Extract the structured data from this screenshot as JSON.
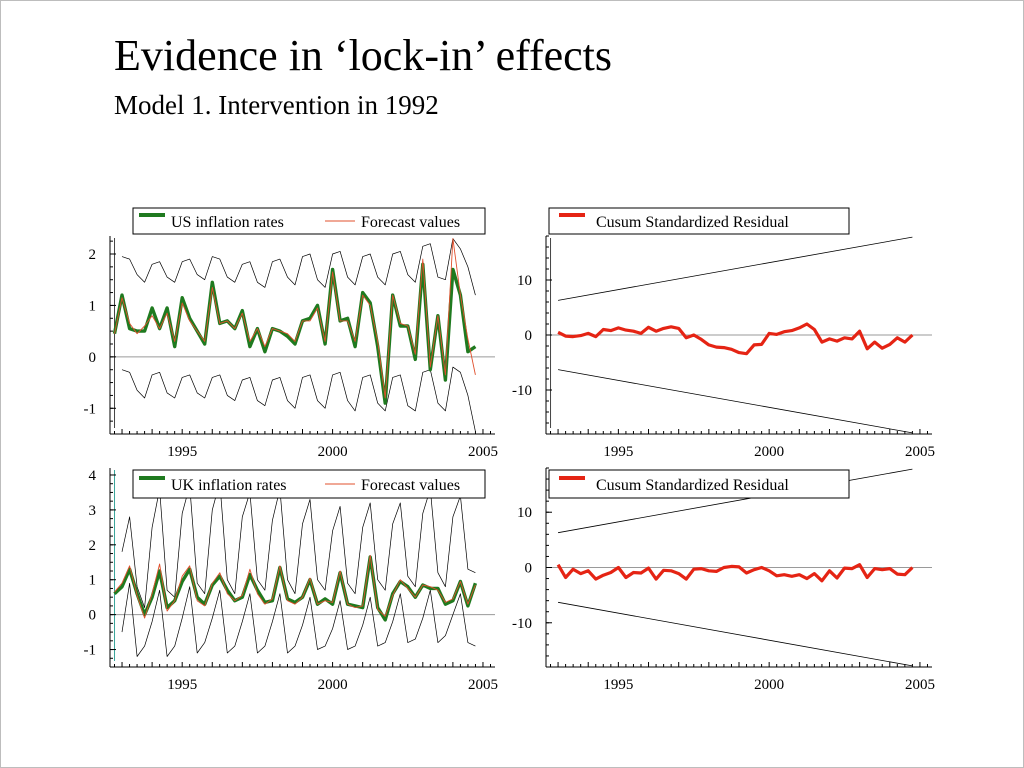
{
  "slide": {
    "title": "Evidence in ‘lock-in’ effects",
    "subtitle": "Model 1. Intervention in 1992"
  },
  "colors": {
    "actual": "#1f7a1f",
    "forecast": "#e0502d",
    "cusum": "#e52414",
    "band": "#000000"
  },
  "chart_data": [
    {
      "type": "line",
      "legend": [
        "US inflation rates",
        "Forecast values"
      ],
      "legend_placement": "top",
      "xlim": [
        1992.6,
        2005.4
      ],
      "ylim": [
        -1.5,
        2.35
      ],
      "xticks": [
        1995,
        2000,
        2005
      ],
      "yticks": [
        -1,
        0,
        1,
        2
      ],
      "vline_x": 1992.75,
      "x_start": 1992.75,
      "x_step": 0.25,
      "series": [
        {
          "name": "US inflation rates",
          "role": "actual",
          "values": [
            0.45,
            1.2,
            0.55,
            0.5,
            0.5,
            0.95,
            0.55,
            0.95,
            0.2,
            1.15,
            0.75,
            0.5,
            0.25,
            1.45,
            0.65,
            0.7,
            0.55,
            0.9,
            0.2,
            0.55,
            0.1,
            0.55,
            0.5,
            0.4,
            0.25,
            0.7,
            0.75,
            1.0,
            0.25,
            1.7,
            0.7,
            0.75,
            0.2,
            1.25,
            1.05,
            0.2,
            -0.9,
            1.2,
            0.6,
            0.6,
            -0.05,
            1.8,
            -0.25,
            0.8,
            -0.45,
            1.7,
            1.2,
            0.1,
            0.2
          ]
        },
        {
          "name": "Forecast values",
          "role": "forecast",
          "values": [
            0.45,
            1.15,
            0.65,
            0.45,
            0.6,
            0.8,
            0.55,
            0.85,
            0.3,
            1.05,
            0.7,
            0.5,
            0.3,
            1.35,
            0.65,
            0.7,
            0.55,
            0.85,
            0.3,
            0.55,
            0.2,
            0.55,
            0.5,
            0.45,
            0.3,
            0.7,
            0.7,
            0.95,
            0.3,
            1.65,
            0.7,
            0.7,
            0.3,
            1.2,
            1.0,
            0.3,
            -0.8,
            1.2,
            0.65,
            0.6,
            0.05,
            1.9,
            -0.2,
            0.8,
            -0.35,
            2.3,
            1.2,
            0.35,
            -0.35
          ]
        },
        {
          "name": "Upper band",
          "role": "band",
          "values": [
            null,
            1.95,
            1.9,
            1.6,
            1.45,
            1.8,
            1.85,
            1.55,
            1.45,
            1.85,
            1.9,
            1.6,
            1.5,
            1.95,
            1.9,
            1.55,
            1.45,
            1.8,
            1.85,
            1.45,
            1.35,
            1.85,
            1.9,
            1.55,
            1.4,
            1.95,
            2.0,
            1.5,
            1.35,
            2.0,
            2.05,
            1.55,
            1.4,
            1.95,
            2.0,
            1.55,
            1.4,
            2.0,
            2.05,
            1.6,
            1.45,
            2.15,
            2.2,
            1.55,
            1.5,
            2.3,
            2.1,
            1.75,
            1.2
          ]
        },
        {
          "name": "Lower band",
          "role": "band",
          "values": [
            null,
            -0.25,
            -0.3,
            -0.65,
            -0.8,
            -0.35,
            -0.3,
            -0.7,
            -0.8,
            -0.4,
            -0.35,
            -0.7,
            -0.8,
            -0.4,
            -0.35,
            -0.75,
            -0.85,
            -0.45,
            -0.4,
            -0.85,
            -0.95,
            -0.45,
            -0.4,
            -0.85,
            -1.0,
            -0.4,
            -0.35,
            -0.85,
            -1.0,
            -0.35,
            -0.3,
            -0.85,
            -1.05,
            -0.4,
            -0.35,
            -0.9,
            -1.05,
            -0.4,
            -0.35,
            -0.95,
            -1.05,
            -0.3,
            -0.25,
            -0.9,
            -1.05,
            -0.2,
            -0.3,
            -0.75,
            -1.45
          ]
        }
      ]
    },
    {
      "type": "line",
      "legend": [
        "Cusum Standardized Residual"
      ],
      "legend_placement": "top",
      "xlim": [
        1992.6,
        2005.4
      ],
      "ylim": [
        -18,
        18
      ],
      "xticks": [
        1995,
        2000,
        2005
      ],
      "yticks": [
        -10,
        0,
        10
      ],
      "vline_x": 1992.75,
      "x_start": 1993.0,
      "x_step": 0.25,
      "bands": {
        "x": [
          1993.0,
          2004.75
        ],
        "upper": [
          6.3,
          17.8
        ],
        "lower": [
          -6.3,
          -17.8
        ]
      },
      "series": [
        {
          "name": "Cusum Standardized Residual",
          "role": "cusum",
          "values": [
            0.5,
            -0.2,
            -0.3,
            -0.1,
            0.3,
            -0.3,
            1.0,
            0.8,
            1.3,
            0.9,
            0.7,
            0.3,
            1.4,
            0.7,
            1.2,
            1.5,
            1.2,
            -0.5,
            0.0,
            -0.8,
            -1.8,
            -2.2,
            -2.3,
            -2.6,
            -3.2,
            -3.4,
            -1.8,
            -1.7,
            0.3,
            0.1,
            0.6,
            0.8,
            1.3,
            2.0,
            1.0,
            -1.3,
            -0.7,
            -1.1,
            -0.5,
            -0.7,
            0.7,
            -2.5,
            -1.3,
            -2.4,
            -1.7,
            -0.5,
            -1.3,
            0.0
          ]
        }
      ]
    },
    {
      "type": "line",
      "legend": [
        "UK inflation rates",
        "Forecast values"
      ],
      "legend_placement": "top",
      "xlim": [
        1992.6,
        2005.4
      ],
      "ylim": [
        -1.5,
        4.2
      ],
      "xticks": [
        1995,
        2000,
        2005
      ],
      "yticks": [
        -1,
        0,
        1,
        2,
        3,
        4
      ],
      "vline_x": 1992.75,
      "x_start": 1992.75,
      "x_step": 0.25,
      "series": [
        {
          "name": "UK inflation rates",
          "role": "actual",
          "values": [
            0.6,
            0.8,
            1.3,
            0.6,
            0.0,
            0.5,
            1.25,
            0.2,
            0.4,
            0.95,
            1.3,
            0.5,
            0.3,
            0.85,
            1.1,
            0.7,
            0.4,
            0.5,
            1.15,
            0.7,
            0.35,
            0.4,
            1.35,
            0.45,
            0.35,
            0.5,
            1.0,
            0.3,
            0.45,
            0.3,
            1.2,
            0.3,
            0.25,
            0.2,
            1.65,
            0.2,
            -0.15,
            0.6,
            0.95,
            0.8,
            0.5,
            0.85,
            0.75,
            0.75,
            0.3,
            0.4,
            0.95,
            0.25,
            0.9
          ]
        },
        {
          "name": "Forecast values",
          "role": "forecast",
          "values": [
            0.65,
            0.9,
            1.4,
            0.55,
            -0.1,
            0.6,
            1.45,
            0.1,
            0.4,
            1.1,
            1.4,
            0.4,
            0.25,
            0.9,
            1.2,
            0.6,
            0.4,
            0.55,
            1.3,
            0.6,
            0.3,
            0.45,
            1.4,
            0.4,
            0.3,
            0.5,
            1.05,
            0.3,
            0.4,
            0.35,
            1.25,
            0.3,
            0.2,
            0.25,
            1.7,
            0.15,
            -0.05,
            0.55,
            1.0,
            0.75,
            0.5,
            0.85,
            0.8,
            0.7,
            0.35,
            0.45,
            0.95,
            0.3,
            0.85
          ]
        },
        {
          "name": "Upper band",
          "role": "band",
          "values": [
            null,
            1.8,
            2.8,
            0.8,
            0.2,
            2.5,
            3.6,
            0.7,
            0.5,
            2.9,
            3.7,
            0.9,
            0.6,
            3.0,
            3.8,
            1.0,
            0.6,
            2.8,
            3.5,
            1.0,
            0.7,
            2.7,
            3.6,
            1.0,
            0.6,
            2.6,
            3.3,
            1.0,
            0.7,
            2.4,
            3.1,
            0.9,
            0.6,
            2.5,
            3.2,
            1.0,
            0.7,
            2.6,
            3.2,
            1.1,
            0.8,
            2.9,
            3.6,
            1.2,
            0.8,
            2.8,
            3.4,
            1.3,
            1.2
          ]
        },
        {
          "name": "Lower band",
          "role": "band",
          "values": [
            null,
            -0.5,
            0.9,
            -1.2,
            -0.9,
            -0.2,
            0.7,
            -1.2,
            -0.9,
            -0.1,
            0.8,
            -1.1,
            -0.8,
            -0.1,
            0.7,
            -1.1,
            -0.9,
            -0.2,
            0.6,
            -1.1,
            -0.9,
            -0.2,
            0.6,
            -1.1,
            -0.9,
            -0.3,
            0.5,
            -1.0,
            -0.9,
            -0.4,
            0.4,
            -1.0,
            -0.9,
            -0.3,
            0.5,
            -0.9,
            -0.8,
            -0.2,
            0.6,
            -0.8,
            -0.7,
            -0.1,
            0.7,
            -0.8,
            -0.6,
            0.0,
            0.6,
            -0.8,
            -0.9
          ]
        }
      ]
    },
    {
      "type": "line",
      "legend": [
        "Cusum Standardized Residual"
      ],
      "legend_placement": "top",
      "xlim": [
        1992.6,
        2005.4
      ],
      "ylim": [
        -18,
        18
      ],
      "xticks": [
        1995,
        2000,
        2005
      ],
      "yticks": [
        -10,
        0,
        10
      ],
      "x_start": 1993.0,
      "x_step": 0.25,
      "bands": {
        "x": [
          1993.0,
          2004.75
        ],
        "upper": [
          6.3,
          17.8
        ],
        "lower": [
          -6.3,
          -17.8
        ]
      },
      "series": [
        {
          "name": "Cusum Standardized Residual",
          "role": "cusum",
          "values": [
            0.5,
            -1.8,
            -0.3,
            -1.1,
            -0.6,
            -2.1,
            -1.4,
            -0.9,
            0.0,
            -1.8,
            -0.9,
            -1.0,
            -0.1,
            -2.1,
            -0.5,
            -0.6,
            -1.1,
            -2.1,
            -0.3,
            -0.2,
            -0.6,
            -0.7,
            0.0,
            0.2,
            0.1,
            -1.0,
            -0.4,
            0.0,
            -0.6,
            -1.5,
            -1.3,
            -1.6,
            -1.3,
            -2.0,
            -1.1,
            -2.4,
            -0.6,
            -1.9,
            -0.1,
            -0.2,
            0.5,
            -1.8,
            -0.2,
            -0.4,
            -0.2,
            -1.2,
            -1.3,
            0.0
          ]
        }
      ]
    }
  ]
}
